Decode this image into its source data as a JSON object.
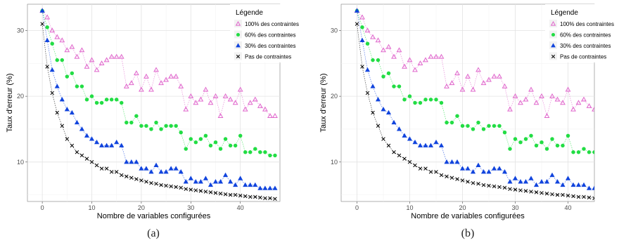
{
  "chart_data": [
    {
      "id": "a",
      "type": "scatter",
      "caption": "(a)",
      "xlabel": "Nombre de variables configurées",
      "ylabel": "Taux d'erreur (%)",
      "xlim": [
        -3,
        48
      ],
      "ylim": [
        4,
        34
      ],
      "xticks": [
        0,
        10,
        20,
        30,
        40
      ],
      "yticks": [
        10,
        20,
        30
      ],
      "grid": true,
      "connected": true,
      "legend": {
        "title": "Légende",
        "position": "top-right"
      },
      "series": [
        {
          "name": "100% des contraintes",
          "marker": "triangle-open",
          "color": "#e066cc",
          "x": [
            0,
            1,
            2,
            3,
            4,
            5,
            6,
            7,
            8,
            9,
            10,
            11,
            12,
            13,
            14,
            15,
            16,
            17,
            18,
            19,
            20,
            21,
            22,
            23,
            24,
            25,
            26,
            27,
            28,
            29,
            30,
            31,
            32,
            33,
            34,
            35,
            36,
            37,
            38,
            39,
            40,
            41,
            42,
            43,
            44,
            45,
            46,
            47
          ],
          "y": [
            33.0,
            32.0,
            30.0,
            29.0,
            28.5,
            27.0,
            27.5,
            26.0,
            27.0,
            24.5,
            25.5,
            24.0,
            25.0,
            25.5,
            26.0,
            26.0,
            26.0,
            21.5,
            22.0,
            23.5,
            21.0,
            23.0,
            21.0,
            24.0,
            22.0,
            22.5,
            23.0,
            23.0,
            21.5,
            18.0,
            20.0,
            19.0,
            19.5,
            21.0,
            19.0,
            20.0,
            17.0,
            20.0,
            19.5,
            19.0,
            21.0,
            18.0,
            19.0,
            19.5,
            18.5,
            18.0,
            17.0,
            17.0
          ]
        },
        {
          "name": "60% des contraintes",
          "marker": "circle",
          "color": "#22dd44",
          "x": [
            0,
            1,
            2,
            3,
            4,
            5,
            6,
            7,
            8,
            9,
            10,
            11,
            12,
            13,
            14,
            15,
            16,
            17,
            18,
            19,
            20,
            21,
            22,
            23,
            24,
            25,
            26,
            27,
            28,
            29,
            30,
            31,
            32,
            33,
            34,
            35,
            36,
            37,
            38,
            39,
            40,
            41,
            42,
            43,
            44,
            45,
            46,
            47
          ],
          "y": [
            33.0,
            30.5,
            28.0,
            25.5,
            25.5,
            23.0,
            23.5,
            21.5,
            21.5,
            19.5,
            20.0,
            19.0,
            19.0,
            19.5,
            19.5,
            19.5,
            19.0,
            16.0,
            16.0,
            17.0,
            15.5,
            15.5,
            15.0,
            16.0,
            15.0,
            15.5,
            15.5,
            15.5,
            14.5,
            12.0,
            13.5,
            13.0,
            13.5,
            14.0,
            12.5,
            13.0,
            12.0,
            13.5,
            12.5,
            12.5,
            14.0,
            11.5,
            11.5,
            12.0,
            11.5,
            11.5,
            11.0,
            11.0
          ]
        },
        {
          "name": "30% des contraintes",
          "marker": "triangle",
          "color": "#1144dd",
          "x": [
            0,
            1,
            2,
            3,
            4,
            5,
            6,
            7,
            8,
            9,
            10,
            11,
            12,
            13,
            14,
            15,
            16,
            17,
            18,
            19,
            20,
            21,
            22,
            23,
            24,
            25,
            26,
            27,
            28,
            29,
            30,
            31,
            32,
            33,
            34,
            35,
            36,
            37,
            38,
            39,
            40,
            41,
            42,
            43,
            44,
            45,
            46,
            47
          ],
          "y": [
            33.0,
            28.5,
            24.0,
            21.5,
            19.5,
            18.0,
            17.5,
            16.0,
            15.0,
            14.0,
            13.5,
            13.0,
            12.5,
            12.5,
            12.5,
            13.0,
            12.5,
            10.0,
            10.0,
            10.0,
            9.0,
            9.0,
            8.5,
            9.5,
            8.5,
            8.5,
            9.0,
            9.0,
            8.5,
            7.0,
            7.5,
            7.0,
            7.0,
            7.5,
            6.5,
            7.0,
            7.0,
            8.0,
            7.0,
            6.5,
            7.5,
            6.5,
            6.5,
            6.5,
            6.0,
            6.0,
            6.0,
            6.0
          ]
        },
        {
          "name": "Pas de contraintes",
          "marker": "cross",
          "color": "#000000",
          "x": [
            0,
            1,
            2,
            3,
            4,
            5,
            6,
            7,
            8,
            9,
            10,
            11,
            12,
            13,
            14,
            15,
            16,
            17,
            18,
            19,
            20,
            21,
            22,
            23,
            24,
            25,
            26,
            27,
            28,
            29,
            30,
            31,
            32,
            33,
            34,
            35,
            36,
            37,
            38,
            39,
            40,
            41,
            42,
            43,
            44,
            45,
            46,
            47
          ],
          "y": [
            31.0,
            24.5,
            20.5,
            17.5,
            15.5,
            13.5,
            12.5,
            11.5,
            11.0,
            10.5,
            10.0,
            9.5,
            9.0,
            9.0,
            8.5,
            8.5,
            8.0,
            7.8,
            7.6,
            7.4,
            7.2,
            7.0,
            6.8,
            6.7,
            6.5,
            6.4,
            6.3,
            6.2,
            6.1,
            5.9,
            5.8,
            5.7,
            5.6,
            5.5,
            5.4,
            5.3,
            5.2,
            5.1,
            5.0,
            5.0,
            4.9,
            4.8,
            4.7,
            4.7,
            4.6,
            4.5,
            4.5,
            4.4
          ]
        }
      ]
    },
    {
      "id": "b",
      "type": "scatter",
      "caption": "(b)",
      "xlabel": "Nombre de variables configurées",
      "ylabel": "Taux d'erreur (%)",
      "xlim": [
        -3,
        45
      ],
      "ylim": [
        4,
        34
      ],
      "xticks": [
        0,
        10,
        20,
        30,
        40
      ],
      "yticks": [
        10,
        20,
        30
      ],
      "grid": true,
      "connected": true,
      "legend": {
        "title": "Légende",
        "position": "top-right"
      },
      "series": [
        {
          "name": "100% des contraintes",
          "marker": "triangle-open",
          "color": "#e066cc",
          "x": [
            0,
            1,
            2,
            3,
            4,
            5,
            6,
            7,
            8,
            9,
            10,
            11,
            12,
            13,
            14,
            15,
            16,
            17,
            18,
            19,
            20,
            21,
            22,
            23,
            24,
            25,
            26,
            27,
            28,
            29,
            30,
            31,
            32,
            33,
            34,
            35,
            36,
            37,
            38,
            39,
            40,
            41,
            42,
            43,
            44,
            45,
            46,
            47
          ],
          "y": [
            33.0,
            32.0,
            30.0,
            29.0,
            28.5,
            27.0,
            27.5,
            26.0,
            27.0,
            24.5,
            25.5,
            24.0,
            25.0,
            25.5,
            26.0,
            26.0,
            26.0,
            21.5,
            22.0,
            23.5,
            21.0,
            23.0,
            21.0,
            24.0,
            22.0,
            22.5,
            23.0,
            23.0,
            21.5,
            18.0,
            20.0,
            19.0,
            19.5,
            21.0,
            19.0,
            20.0,
            17.0,
            20.0,
            19.5,
            19.0,
            21.0,
            18.0,
            19.0,
            19.5,
            18.5,
            18.0,
            17.0,
            17.0
          ]
        },
        {
          "name": "60% des contraintes",
          "marker": "circle",
          "color": "#22dd44",
          "x": [
            0,
            1,
            2,
            3,
            4,
            5,
            6,
            7,
            8,
            9,
            10,
            11,
            12,
            13,
            14,
            15,
            16,
            17,
            18,
            19,
            20,
            21,
            22,
            23,
            24,
            25,
            26,
            27,
            28,
            29,
            30,
            31,
            32,
            33,
            34,
            35,
            36,
            37,
            38,
            39,
            40,
            41,
            42,
            43,
            44,
            45,
            46,
            47
          ],
          "y": [
            33.0,
            30.5,
            28.0,
            25.5,
            25.5,
            23.0,
            23.5,
            21.5,
            21.5,
            19.5,
            20.0,
            19.0,
            19.0,
            19.5,
            19.5,
            19.5,
            19.0,
            16.0,
            16.0,
            17.0,
            15.5,
            15.5,
            15.0,
            16.0,
            15.0,
            15.5,
            15.5,
            15.5,
            14.5,
            12.0,
            13.5,
            13.0,
            13.5,
            14.0,
            12.5,
            13.0,
            12.0,
            13.5,
            12.5,
            12.5,
            14.0,
            11.5,
            11.5,
            12.0,
            11.5,
            11.5,
            11.0,
            11.0
          ]
        },
        {
          "name": "30% des contraintes",
          "marker": "triangle",
          "color": "#1144dd",
          "x": [
            0,
            1,
            2,
            3,
            4,
            5,
            6,
            7,
            8,
            9,
            10,
            11,
            12,
            13,
            14,
            15,
            16,
            17,
            18,
            19,
            20,
            21,
            22,
            23,
            24,
            25,
            26,
            27,
            28,
            29,
            30,
            31,
            32,
            33,
            34,
            35,
            36,
            37,
            38,
            39,
            40,
            41,
            42,
            43,
            44,
            45,
            46,
            47
          ],
          "y": [
            33.0,
            28.5,
            24.0,
            21.5,
            19.5,
            18.0,
            17.5,
            16.0,
            15.0,
            14.0,
            13.5,
            13.0,
            12.5,
            12.5,
            12.5,
            13.0,
            12.5,
            10.0,
            10.0,
            10.0,
            9.0,
            9.0,
            8.5,
            9.5,
            8.5,
            8.5,
            9.0,
            9.0,
            8.5,
            7.0,
            7.5,
            7.0,
            7.0,
            7.5,
            6.5,
            7.0,
            7.0,
            8.0,
            7.0,
            6.5,
            7.5,
            6.5,
            6.5,
            6.5,
            6.0,
            6.0,
            6.0,
            6.0
          ]
        },
        {
          "name": "Pas de contraintes",
          "marker": "cross",
          "color": "#000000",
          "x": [
            0,
            1,
            2,
            3,
            4,
            5,
            6,
            7,
            8,
            9,
            10,
            11,
            12,
            13,
            14,
            15,
            16,
            17,
            18,
            19,
            20,
            21,
            22,
            23,
            24,
            25,
            26,
            27,
            28,
            29,
            30,
            31,
            32,
            33,
            34,
            35,
            36,
            37,
            38,
            39,
            40,
            41,
            42,
            43,
            44,
            45,
            46,
            47
          ],
          "y": [
            31.0,
            24.5,
            20.5,
            17.5,
            15.5,
            13.5,
            12.5,
            11.5,
            11.0,
            10.5,
            10.0,
            9.5,
            9.0,
            9.0,
            8.5,
            8.5,
            8.0,
            7.8,
            7.6,
            7.4,
            7.2,
            7.0,
            6.8,
            6.7,
            6.5,
            6.4,
            6.3,
            6.2,
            6.1,
            5.9,
            5.8,
            5.7,
            5.6,
            5.5,
            5.4,
            5.3,
            5.2,
            5.1,
            5.0,
            5.0,
            4.9,
            4.8,
            4.7,
            4.7,
            4.6,
            4.5,
            4.5,
            4.4
          ]
        }
      ]
    }
  ]
}
